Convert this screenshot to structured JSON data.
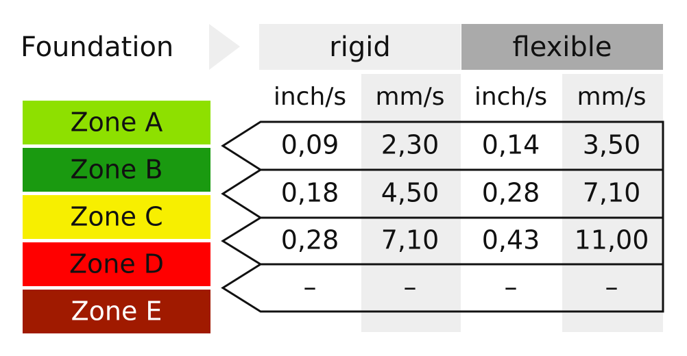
{
  "header": {
    "title": "Foundation",
    "groups": [
      "rigid",
      "flexible"
    ],
    "units": [
      "inch/s",
      "mm/s",
      "inch/s",
      "mm/s"
    ]
  },
  "zones": [
    "Zone A",
    "Zone B",
    "Zone C",
    "Zone D",
    "Zone E"
  ],
  "table": {
    "rows": [
      [
        "0,09",
        "2,30",
        "0,14",
        "3,50"
      ],
      [
        "0,18",
        "4,50",
        "0,28",
        "7,10"
      ],
      [
        "0,28",
        "7,10",
        "0,43",
        "11,00"
      ],
      [
        "–",
        "–",
        "–",
        "–"
      ]
    ]
  }
}
